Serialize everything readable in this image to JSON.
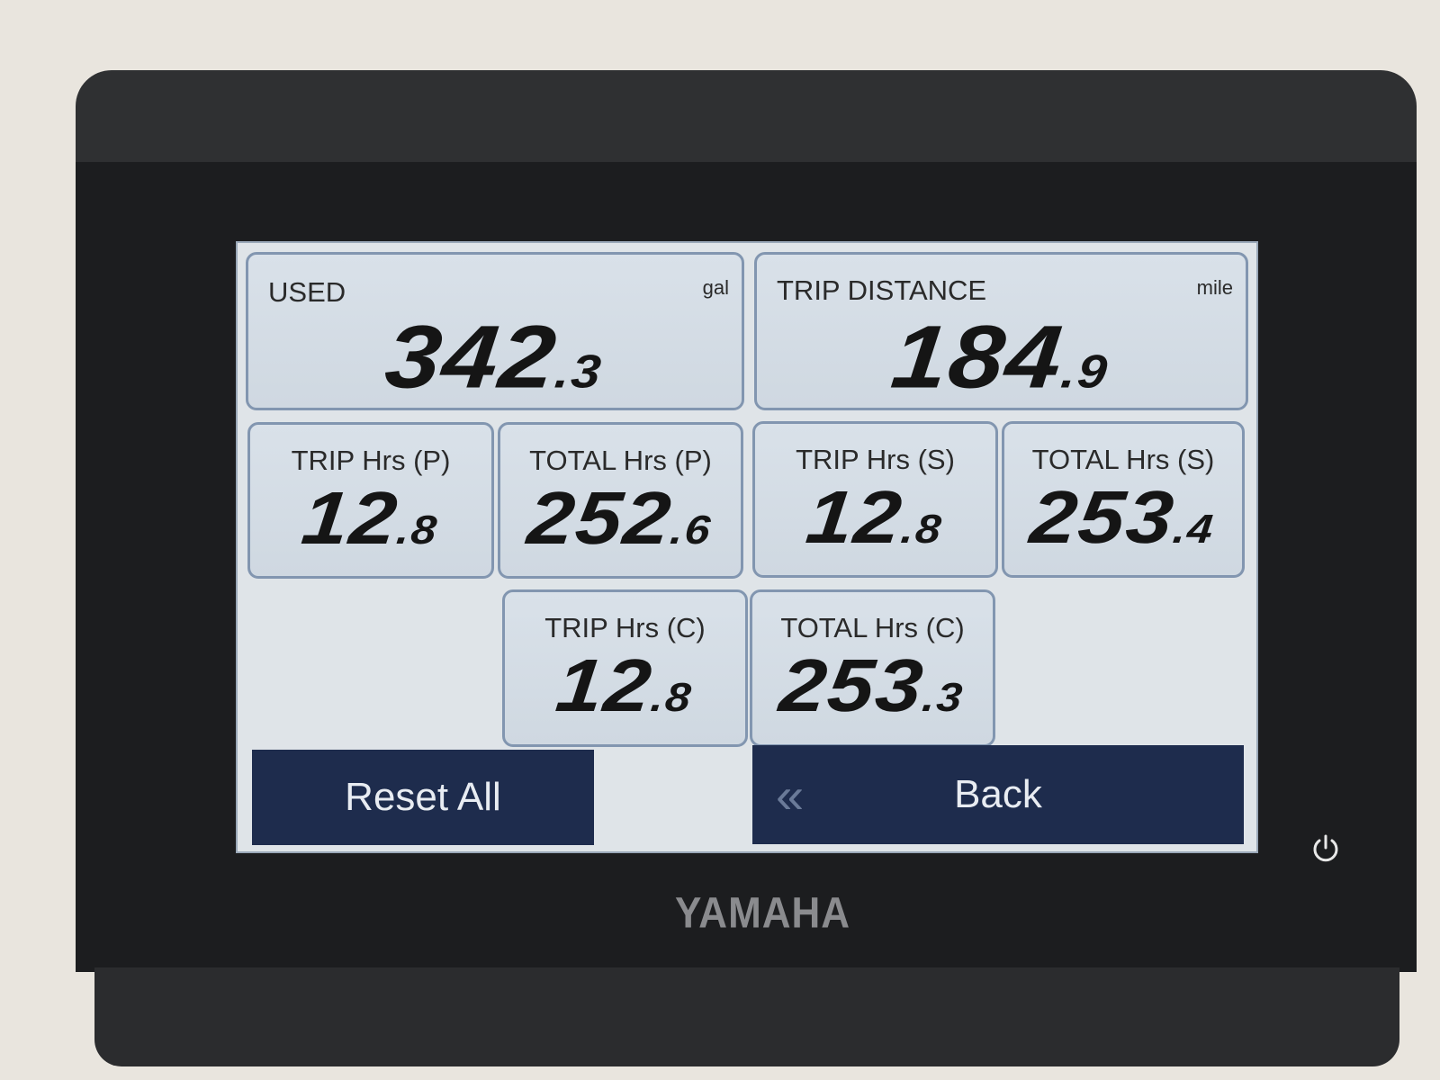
{
  "device": {
    "brand": "YAMAHA",
    "power_icon": "power-icon"
  },
  "tiles": {
    "used": {
      "label": "USED",
      "unit": "gal",
      "int": "342",
      "dec": ".3"
    },
    "trip_distance": {
      "label": "TRIP DISTANCE",
      "unit": "mile",
      "int": "184",
      "dec": ".9"
    },
    "trip_p": {
      "label": "TRIP Hrs (P)",
      "int": "12",
      "dec": ".8"
    },
    "total_p": {
      "label": "TOTAL Hrs (P)",
      "int": "252",
      "dec": ".6"
    },
    "trip_s": {
      "label": "TRIP Hrs (S)",
      "int": "12",
      "dec": ".8"
    },
    "total_s": {
      "label": "TOTAL Hrs (S)",
      "int": "253",
      "dec": ".4"
    },
    "trip_c": {
      "label": "TRIP Hrs (C)",
      "int": "12",
      "dec": ".8"
    },
    "total_c": {
      "label": "TOTAL Hrs (C)",
      "int": "253",
      "dec": ".3"
    }
  },
  "buttons": {
    "reset_all": "Reset All",
    "back": "Back",
    "back_icon": "double-chevron-left-icon"
  },
  "colors": {
    "button": "#1e2c4d",
    "tile_border": "#8296b0",
    "screen": "#dfe4e8"
  }
}
